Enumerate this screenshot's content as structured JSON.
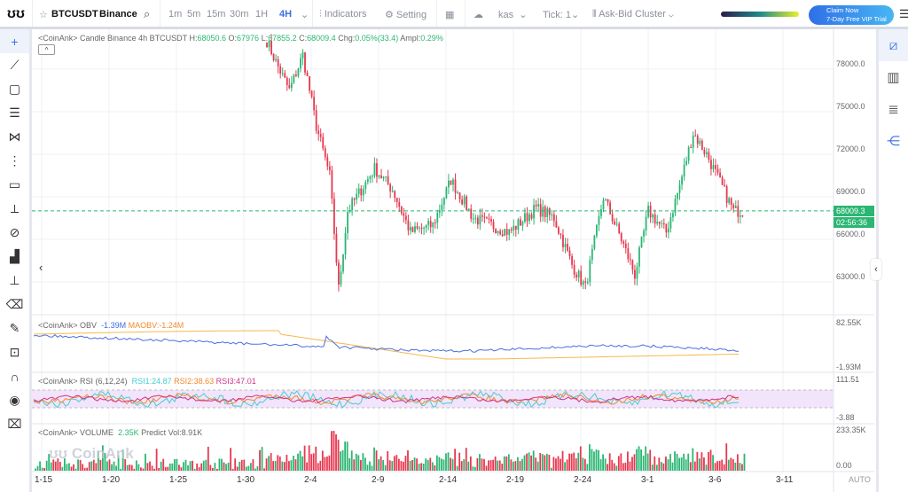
{
  "toolbar": {
    "symbol": "BTCUSDT",
    "exchange": "Binance",
    "intervals": [
      "1m",
      "5m",
      "15m",
      "30m",
      "1H",
      "4H"
    ],
    "active_interval": "4H",
    "indicators": "Indicators",
    "setting": "Setting",
    "user": "kas",
    "tick_label": "Tick:",
    "tick_value": "1",
    "cluster": "Ask-Bid Cluster",
    "promo_line1": "Claim Now",
    "promo_line2": "7-Day Free VIP Trial"
  },
  "legend": {
    "prefix": "<CoinAnk> Candle  Binance 4h BTCUSDT",
    "h_label": "H:",
    "h": "68050.6",
    "o_label": "O:",
    "o": "67976",
    "l_label": "L:",
    "l": "67855.2",
    "c_label": "C:",
    "c": "68009.4",
    "chg_label": "Chg:",
    "chg": "0.05%(33.4)",
    "ampl_label": "Ampl:",
    "ampl": "0.29%"
  },
  "obv": {
    "title": "<CoinAnk> OBV",
    "obv": "-1.39M",
    "maobv": "MAOBV:-1.24M",
    "axis_top": "82.55K",
    "axis_bottom": "-1.93M"
  },
  "rsi": {
    "title": "<CoinAnk> RSI  (6,12,24)",
    "rsi1": "RSI1:24.87",
    "rsi2": "RSI2:38.63",
    "rsi3": "RSI3:47.01",
    "axis_top": "111.51",
    "axis_bottom": "-3.88"
  },
  "volume": {
    "title": "<CoinAnk> VOLUME",
    "vol": "2.35K",
    "predict": "Predict Vol:8.91K",
    "axis_top": "233.35K",
    "axis_bottom": "0.00",
    "watermark": "CoinAnk"
  },
  "price_axis": {
    "ticks": [
      "78000.0",
      "75000.0",
      "72000.0",
      "69000.0",
      "66000.0",
      "63000.0"
    ],
    "last_price": "68009.3",
    "countdown": "02:56:36",
    "auto": "AUTO"
  },
  "colors": {
    "up": "#2bb673",
    "down": "#e8384f",
    "accent": "#3b6fe0"
  },
  "chart_data": {
    "type": "candlestick",
    "x_ticks": [
      "1-15",
      "1-20",
      "1-25",
      "1-30",
      "2-4",
      "2-9",
      "2-14",
      "2-19",
      "2-24",
      "3-1",
      "3-6",
      "3-11"
    ],
    "price_path": [
      [
        0,
        80000
      ],
      [
        4,
        78500
      ],
      [
        10,
        76500
      ],
      [
        16,
        79000
      ],
      [
        22,
        74000
      ],
      [
        28,
        70500
      ],
      [
        32,
        62500
      ],
      [
        36,
        68000
      ],
      [
        48,
        71000
      ],
      [
        56,
        69500
      ],
      [
        64,
        66500
      ],
      [
        74,
        67000
      ],
      [
        82,
        70200
      ],
      [
        92,
        67500
      ],
      [
        108,
        66500
      ],
      [
        120,
        68200
      ],
      [
        128,
        67500
      ],
      [
        136,
        64200
      ],
      [
        142,
        62600
      ],
      [
        150,
        69000
      ],
      [
        158,
        66000
      ],
      [
        164,
        63500
      ],
      [
        170,
        68000
      ],
      [
        178,
        66500
      ],
      [
        184,
        69800
      ],
      [
        190,
        73500
      ],
      [
        196,
        72000
      ],
      [
        202,
        70000
      ],
      [
        208,
        68000
      ],
      [
        212,
        68009
      ]
    ]
  }
}
